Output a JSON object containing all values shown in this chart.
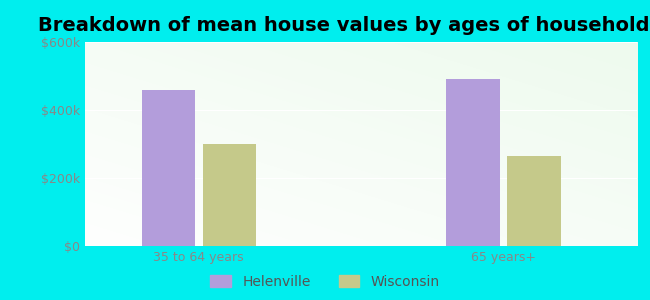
{
  "title": "Breakdown of mean house values by ages of householders",
  "categories": [
    "35 to 64 years",
    "65 years+"
  ],
  "series": {
    "Helenville": [
      460000,
      490000
    ],
    "Wisconsin": [
      300000,
      265000
    ]
  },
  "bar_colors": {
    "Helenville": "#b39ddb",
    "Wisconsin": "#c5c98a"
  },
  "ylim": [
    0,
    600000
  ],
  "yticks": [
    0,
    200000,
    400000,
    600000
  ],
  "ytick_labels": [
    "$0",
    "$200k",
    "$400k",
    "$600k"
  ],
  "background_color": "#00eeee",
  "title_fontsize": 14,
  "tick_fontsize": 9,
  "legend_fontsize": 10,
  "bar_width": 0.28,
  "tick_color": "#888888",
  "legend_text_color": "#555555"
}
